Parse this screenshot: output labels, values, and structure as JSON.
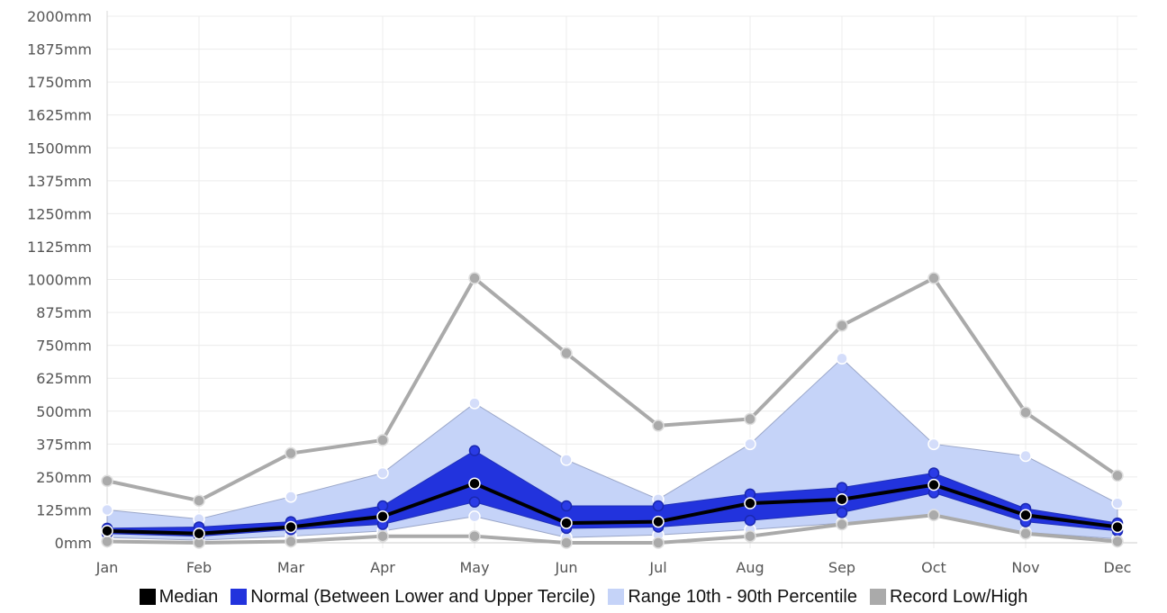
{
  "chart_data": {
    "type": "line",
    "categories": [
      "Jan",
      "Feb",
      "Mar",
      "Apr",
      "May",
      "Jun",
      "Jul",
      "Aug",
      "Sep",
      "Oct",
      "Nov",
      "Dec"
    ],
    "yticks": [
      "0mm",
      "125mm",
      "250mm",
      "375mm",
      "500mm",
      "625mm",
      "750mm",
      "875mm",
      "1000mm",
      "1125mm",
      "1250mm",
      "1375mm",
      "1500mm",
      "1625mm",
      "1750mm",
      "1875mm",
      "2000mm"
    ],
    "ylim": [
      0,
      2000
    ],
    "grid": true,
    "legend_position": "bottom",
    "series": [
      {
        "name": "Record Low/High",
        "kind": "band-lines",
        "color": "#aaaaaa",
        "low": [
          5,
          0,
          5,
          25,
          25,
          0,
          0,
          25,
          70,
          105,
          35,
          5
        ],
        "high": [
          235,
          160,
          340,
          390,
          1005,
          720,
          445,
          470,
          825,
          1005,
          495,
          255
        ]
      },
      {
        "name": "Range 10th - 90th Percentile",
        "kind": "band",
        "color": "#c5d3f8",
        "low": [
          20,
          10,
          25,
          45,
          100,
          20,
          30,
          50,
          75,
          105,
          40,
          15
        ],
        "high": [
          125,
          90,
          175,
          265,
          530,
          315,
          165,
          375,
          700,
          375,
          330,
          150
        ]
      },
      {
        "name": "Normal (Between Lower and Upper Tercile)",
        "kind": "band",
        "color": "#2233dd",
        "low": [
          35,
          25,
          50,
          70,
          155,
          55,
          60,
          85,
          115,
          190,
          80,
          45
        ],
        "high": [
          55,
          60,
          80,
          140,
          350,
          140,
          140,
          185,
          210,
          265,
          130,
          75
        ]
      },
      {
        "name": "Median",
        "kind": "line",
        "color": "#000000",
        "values": [
          45,
          35,
          60,
          100,
          225,
          75,
          80,
          150,
          165,
          220,
          105,
          60
        ]
      }
    ]
  },
  "legend": [
    {
      "label": "Median",
      "color": "#000000"
    },
    {
      "label": "Normal (Between Lower and Upper Tercile)",
      "color": "#2233dd"
    },
    {
      "label": "Range 10th - 90th Percentile",
      "color": "#c5d3f8"
    },
    {
      "label": "Record Low/High",
      "color": "#aaaaaa"
    }
  ]
}
